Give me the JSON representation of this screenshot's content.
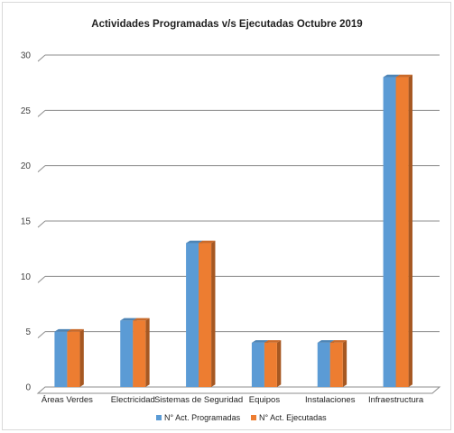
{
  "chart_data": {
    "type": "bar",
    "title": "Actividades Programadas v/s Ejecutadas Octubre 2019",
    "categories": [
      "Áreas Verdes",
      "Electricidad",
      "Sistemas de Seguridad",
      "Equipos",
      "Instalaciones",
      "Infraestructura"
    ],
    "series": [
      {
        "name": "N° Act. Programadas",
        "values": [
          5,
          6,
          13,
          4,
          4,
          28
        ],
        "color": "#5b9bd5"
      },
      {
        "name": "N° Act. Ejecutadas",
        "values": [
          5,
          6,
          13,
          4,
          4,
          28
        ],
        "color": "#ed7d31"
      }
    ],
    "yticks": [
      0,
      5,
      10,
      15,
      20,
      25,
      30
    ],
    "ylim": [
      0,
      30
    ],
    "grid": true,
    "legend_position": "bottom",
    "style": "3d-clustered-column"
  }
}
